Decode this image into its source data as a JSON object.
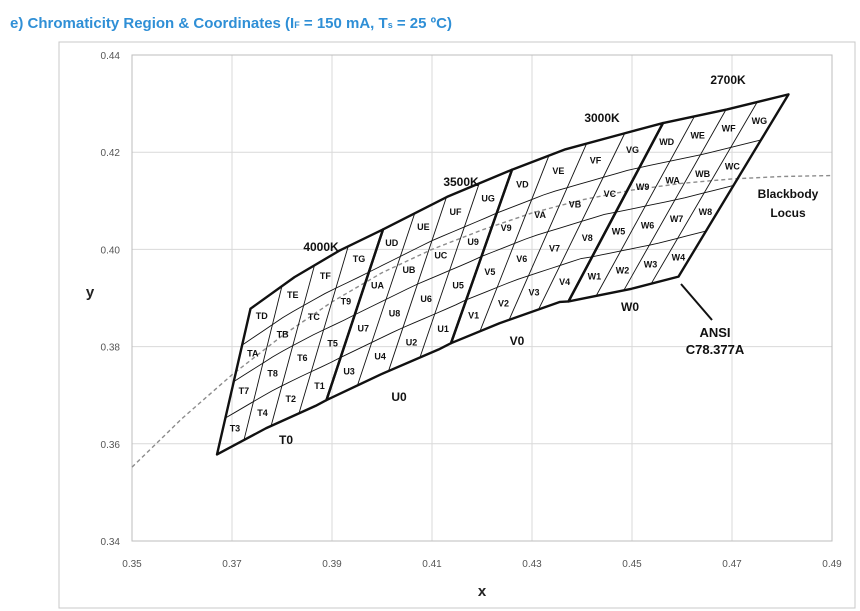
{
  "header": {
    "prefix": "e)",
    "title_pre": "Chromaticity Region & Coordinates (I",
    "sub_f": "F",
    "title_mid": " = 150 mA, T",
    "sub_s": "s",
    "title_post": " = 25 ºC)"
  },
  "colors": {
    "heading": "#2f8fd6",
    "grid": "#d9d9d9",
    "outline": "#111111",
    "locus": "#8c8c8c"
  },
  "chart_data": {
    "type": "scatter",
    "xlabel": "x",
    "ylabel": "y",
    "xlim": [
      0.35,
      0.49
    ],
    "ylim": [
      0.34,
      0.44
    ],
    "xticks": [
      "0.35",
      "0.37",
      "0.39",
      "0.41",
      "0.43",
      "0.45",
      "0.47",
      "0.49"
    ],
    "yticks": [
      "0.34",
      "0.36",
      "0.38",
      "0.40",
      "0.42",
      "0.44"
    ],
    "grid": true,
    "bins": [
      {
        "name": "T0",
        "cct": "4000K",
        "top": [
          [
            0.3737,
            0.3878
          ],
          [
            0.3825,
            0.3943
          ],
          [
            0.3914,
            0.3997
          ],
          [
            0.4002,
            0.4041
          ]
        ],
        "bottom": [
          [
            0.367,
            0.3578
          ],
          [
            0.3768,
            0.3632
          ],
          [
            0.3867,
            0.3678
          ],
          [
            0.3889,
            0.369
          ]
        ],
        "cells": [
          [
            "TD",
            "TE",
            "TF",
            "TG"
          ],
          [
            "TA",
            "TB",
            "TC"
          ],
          [
            "T9",
            "T7",
            "T8"
          ],
          [
            "T6"
          ],
          [
            "T5",
            "T3",
            "T4"
          ],
          [
            "T2"
          ],
          [
            "T1"
          ]
        ]
      },
      {
        "name": "U0",
        "cct": "3500K",
        "top": [
          [
            0.4002,
            0.4041
          ],
          [
            0.413,
            0.4108
          ],
          [
            0.426,
            0.4164
          ],
          [
            0.426,
            0.4164
          ]
        ],
        "bottom": [
          [
            0.3889,
            0.369
          ],
          [
            0.3998,
            0.3743
          ],
          [
            0.4113,
            0.3794
          ],
          [
            0.4138,
            0.3807
          ]
        ],
        "cells": [
          [
            "UD",
            "UE",
            "UF",
            "UG"
          ],
          [
            "UA",
            "UB",
            "UC"
          ],
          [
            "U9",
            "U7",
            "U8"
          ],
          [
            "U6"
          ],
          [
            "U5",
            "U3",
            "U4"
          ],
          [
            "U2"
          ],
          [
            "U1"
          ]
        ]
      },
      {
        "name": "V0",
        "cct": "3000K",
        "top": [
          [
            0.426,
            0.4164
          ],
          [
            0.4367,
            0.4206
          ],
          [
            0.4482,
            0.4238
          ],
          [
            0.4562,
            0.426
          ]
        ],
        "bottom": [
          [
            0.4138,
            0.3807
          ],
          [
            0.4235,
            0.3848
          ],
          [
            0.4356,
            0.3892
          ],
          [
            0.4373,
            0.3893
          ]
        ],
        "cells": [
          [
            "VD",
            "VE",
            "VF",
            "VG"
          ],
          [
            "V9",
            "VA",
            "VB",
            "VC"
          ],
          [
            "V5",
            "V6",
            "V7",
            "V8"
          ],
          [
            "V1",
            "V2",
            "V3",
            "V4"
          ]
        ]
      },
      {
        "name": "W0",
        "cct": "2700K",
        "top": [
          [
            0.4562,
            0.426
          ],
          [
            0.469,
            0.4288
          ],
          [
            0.4813,
            0.4319
          ]
        ],
        "bottom": [
          [
            0.4373,
            0.3893
          ],
          [
            0.4499,
            0.3919
          ],
          [
            0.4593,
            0.3944
          ]
        ],
        "cells": [
          [
            "WD",
            "WE",
            "WF",
            "WG"
          ],
          [
            "W9",
            "WA",
            "WB",
            "WC"
          ],
          [
            "W5",
            "W6",
            "W7",
            "W8"
          ],
          [
            "W1",
            "W2",
            "W3",
            "W4"
          ]
        ]
      }
    ],
    "zone_labels": [
      "T0",
      "U0",
      "V0",
      "W0"
    ],
    "cct_labels": [
      "4000K",
      "3500K",
      "3000K",
      "2700K"
    ],
    "blackbody_locus": {
      "name": "Blackbody Locus",
      "x": [
        0.35,
        0.36,
        0.37,
        0.38,
        0.39,
        0.4,
        0.41,
        0.42,
        0.43,
        0.44,
        0.45,
        0.46,
        0.47,
        0.48,
        0.49
      ],
      "y": [
        0.3552,
        0.3652,
        0.3742,
        0.3822,
        0.3892,
        0.3952,
        0.4,
        0.404,
        0.4075,
        0.4102,
        0.4122,
        0.4136,
        0.4145,
        0.415,
        0.4152
      ]
    },
    "annotations": [
      "Blackbody",
      "Locus",
      "ANSI",
      "C78.377A"
    ]
  }
}
